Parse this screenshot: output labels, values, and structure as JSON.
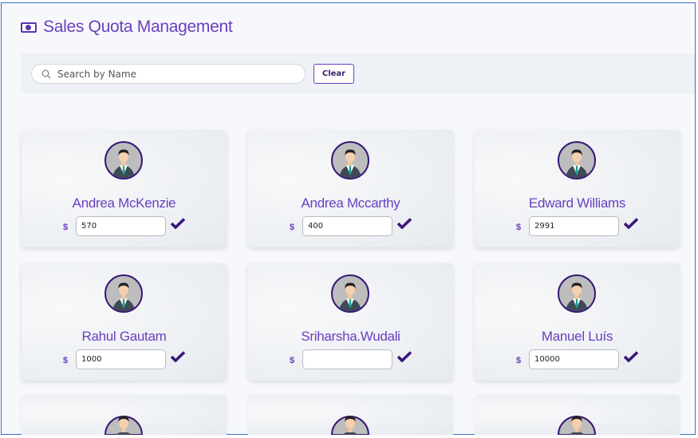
{
  "header": {
    "title": "Sales Quota Management",
    "icon": "money-bill-icon"
  },
  "search": {
    "placeholder": "Search by Name",
    "value": "",
    "clear_label": "Clear"
  },
  "currency_symbol": "$",
  "colors": {
    "accent": "#6a3fc0",
    "dark_accent": "#3a1878"
  },
  "users": [
    {
      "name": "Andrea McKenzie",
      "quota": "570"
    },
    {
      "name": "Andrea Mccarthy",
      "quota": "400"
    },
    {
      "name": "Edward Williams",
      "quota": "2991"
    },
    {
      "name": "Rahul Gautam",
      "quota": "1000"
    },
    {
      "name": "Sriharsha.Wudali",
      "quota": ""
    },
    {
      "name": "Manuel Luís",
      "quota": "10000"
    },
    {
      "name": null,
      "quota": null
    },
    {
      "name": null,
      "quota": null
    },
    {
      "name": null,
      "quota": null
    }
  ]
}
